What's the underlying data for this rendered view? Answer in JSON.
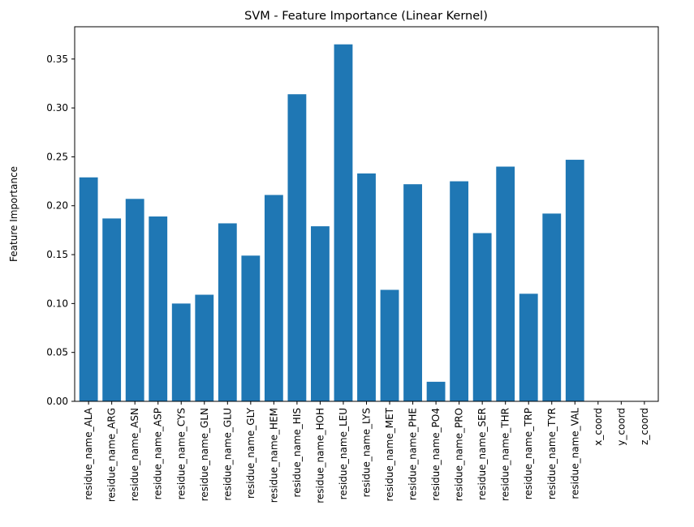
{
  "chart_data": {
    "type": "bar",
    "title": "SVM - Feature Importance (Linear Kernel)",
    "xlabel": "",
    "ylabel": "Feature Importance",
    "ylim": [
      0,
      0.383
    ],
    "yticks": [
      0.0,
      0.05,
      0.1,
      0.15,
      0.2,
      0.25,
      0.3,
      0.35
    ],
    "ytick_labels": [
      "0.00",
      "0.05",
      "0.10",
      "0.15",
      "0.20",
      "0.25",
      "0.30",
      "0.35"
    ],
    "grid": false,
    "bar_color": "#1f77b4",
    "categories": [
      "residue_name_ALA",
      "residue_name_ARG",
      "residue_name_ASN",
      "residue_name_ASP",
      "residue_name_CYS",
      "residue_name_GLN",
      "residue_name_GLU",
      "residue_name_GLY",
      "residue_name_HEM",
      "residue_name_HIS",
      "residue_name_HOH",
      "residue_name_LEU",
      "residue_name_LYS",
      "residue_name_MET",
      "residue_name_PHE",
      "residue_name_PO4",
      "residue_name_PRO",
      "residue_name_SER",
      "residue_name_THR",
      "residue_name_TRP",
      "residue_name_TYR",
      "residue_name_VAL",
      "x_coord",
      "y_coord",
      "z_coord"
    ],
    "values": [
      0.229,
      0.187,
      0.207,
      0.189,
      0.1,
      0.109,
      0.182,
      0.149,
      0.211,
      0.314,
      0.179,
      0.365,
      0.233,
      0.114,
      0.222,
      0.02,
      0.225,
      0.172,
      0.24,
      0.11,
      0.192,
      0.247,
      0.0,
      0.0,
      0.0
    ]
  }
}
